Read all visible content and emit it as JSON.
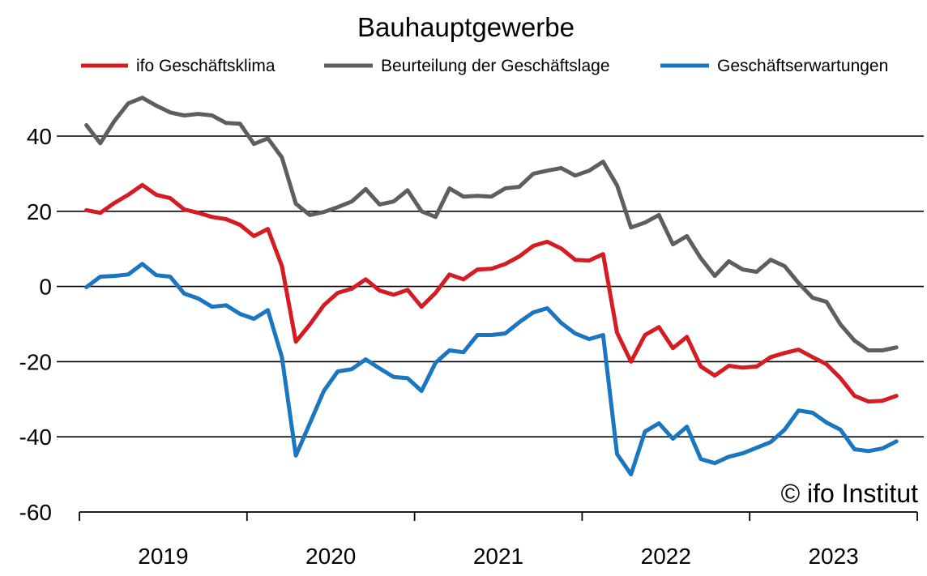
{
  "chart_data": {
    "type": "line",
    "title": "Bauhauptgewerbe",
    "x": [
      "2019-01",
      "2019-02",
      "2019-03",
      "2019-04",
      "2019-05",
      "2019-06",
      "2019-07",
      "2019-08",
      "2019-09",
      "2019-10",
      "2019-11",
      "2019-12",
      "2020-01",
      "2020-02",
      "2020-03",
      "2020-04",
      "2020-05",
      "2020-06",
      "2020-07",
      "2020-08",
      "2020-09",
      "2020-10",
      "2020-11",
      "2020-12",
      "2021-01",
      "2021-02",
      "2021-03",
      "2021-04",
      "2021-05",
      "2021-06",
      "2021-07",
      "2021-08",
      "2021-09",
      "2021-10",
      "2021-11",
      "2021-12",
      "2022-01",
      "2022-02",
      "2022-03",
      "2022-04",
      "2022-05",
      "2022-06",
      "2022-07",
      "2022-08",
      "2022-09",
      "2022-10",
      "2022-11",
      "2022-12",
      "2023-01",
      "2023-02",
      "2023-03",
      "2023-04",
      "2023-05",
      "2023-06",
      "2023-07",
      "2023-08",
      "2023-09",
      "2023-10",
      "2023-11"
    ],
    "x_tick_labels": [
      "2019",
      "2020",
      "2021",
      "2022",
      "2023"
    ],
    "y_ticks": [
      40,
      20,
      0,
      -20,
      -40,
      -60
    ],
    "ylim": [
      -60,
      50
    ],
    "grid": true,
    "legend_position": "top",
    "series": [
      {
        "name": "ifo Geschäftsklima",
        "color": "#d41c22",
        "values": [
          20.3,
          19.6,
          22.2,
          24.4,
          27.0,
          24.4,
          23.5,
          20.5,
          19.6,
          18.5,
          17.9,
          16.4,
          13.4,
          15.3,
          5.4,
          -14.7,
          -10.1,
          -5.0,
          -1.7,
          -0.6,
          1.9,
          -1.1,
          -2.2,
          -0.9,
          -5.4,
          -1.7,
          3.2,
          1.9,
          4.5,
          4.7,
          6.0,
          8.0,
          10.8,
          11.9,
          10.1,
          7.1,
          6.9,
          8.6,
          -12.3,
          -20.0,
          -12.9,
          -10.8,
          -16.4,
          -13.4,
          -21.3,
          -23.7,
          -21.1,
          -21.6,
          -21.3,
          -18.8,
          -17.7,
          -16.8,
          -18.8,
          -20.7,
          -24.4,
          -29.1,
          -30.6,
          -30.4,
          -29.1
        ]
      },
      {
        "name": "Beurteilung der Geschäftslage",
        "color": "#5e5e5e",
        "values": [
          42.9,
          38.1,
          44.0,
          48.7,
          50.2,
          48.1,
          46.3,
          45.5,
          45.9,
          45.5,
          43.5,
          43.3,
          37.9,
          39.4,
          34.3,
          22.0,
          19.0,
          19.8,
          21.1,
          22.6,
          25.9,
          21.8,
          22.6,
          25.6,
          20.0,
          18.5,
          26.1,
          23.9,
          24.1,
          23.9,
          26.1,
          26.5,
          30.0,
          30.8,
          31.5,
          29.5,
          30.8,
          33.2,
          26.9,
          15.7,
          17.0,
          19.0,
          11.2,
          13.4,
          7.5,
          2.8,
          6.7,
          4.5,
          3.9,
          7.1,
          5.4,
          0.9,
          -3.0,
          -4.1,
          -10.1,
          -14.4,
          -17.0,
          -17.0,
          -16.2
        ]
      },
      {
        "name": "Geschäftserwartungen",
        "color": "#1a76c0",
        "values": [
          -0.2,
          2.6,
          2.8,
          3.2,
          6.0,
          3.0,
          2.6,
          -1.9,
          -3.2,
          -5.4,
          -5.0,
          -7.3,
          -8.6,
          -6.3,
          -18.8,
          -45.0,
          -36.4,
          -27.8,
          -22.6,
          -22.0,
          -19.4,
          -21.8,
          -24.1,
          -24.4,
          -27.8,
          -20.3,
          -17.0,
          -17.5,
          -12.9,
          -12.9,
          -12.5,
          -9.5,
          -6.9,
          -5.8,
          -9.7,
          -12.5,
          -14.0,
          -12.9,
          -44.6,
          -50.0,
          -38.6,
          -36.4,
          -40.5,
          -37.3,
          -45.9,
          -47.0,
          -45.3,
          -44.4,
          -42.9,
          -41.4,
          -38.1,
          -33.0,
          -33.6,
          -36.2,
          -38.1,
          -43.3,
          -43.8,
          -43.1,
          -41.2
        ]
      }
    ]
  },
  "credit": "© ifo Institut"
}
